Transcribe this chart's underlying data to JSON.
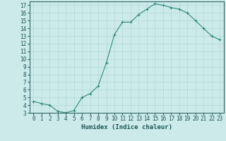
{
  "x": [
    0,
    1,
    2,
    3,
    4,
    5,
    6,
    7,
    8,
    9,
    10,
    11,
    12,
    13,
    14,
    15,
    16,
    17,
    18,
    19,
    20,
    21,
    22,
    23
  ],
  "y": [
    4.5,
    4.2,
    4.0,
    3.2,
    3.0,
    3.3,
    5.0,
    5.5,
    6.5,
    9.5,
    13.2,
    14.8,
    14.8,
    15.8,
    16.5,
    17.2,
    17.0,
    16.7,
    16.5,
    16.0,
    15.0,
    14.0,
    13.0,
    12.5
  ],
  "line_color": "#2e8b7a",
  "marker": "+",
  "marker_size": 3,
  "bg_color": "#cceaea",
  "grid_color": "#b0d8d8",
  "xlabel": "Humidex (Indice chaleur)",
  "ylim": [
    3,
    17.5
  ],
  "xlim": [
    -0.5,
    23.5
  ],
  "yticks": [
    3,
    4,
    5,
    6,
    7,
    8,
    9,
    10,
    11,
    12,
    13,
    14,
    15,
    16,
    17
  ],
  "xticks": [
    0,
    1,
    2,
    3,
    4,
    5,
    6,
    7,
    8,
    9,
    10,
    11,
    12,
    13,
    14,
    15,
    16,
    17,
    18,
    19,
    20,
    21,
    22,
    23
  ],
  "tick_fontsize": 5.5,
  "xlabel_fontsize": 6.5,
  "line_width": 0.8,
  "marker_edge_width": 0.8
}
